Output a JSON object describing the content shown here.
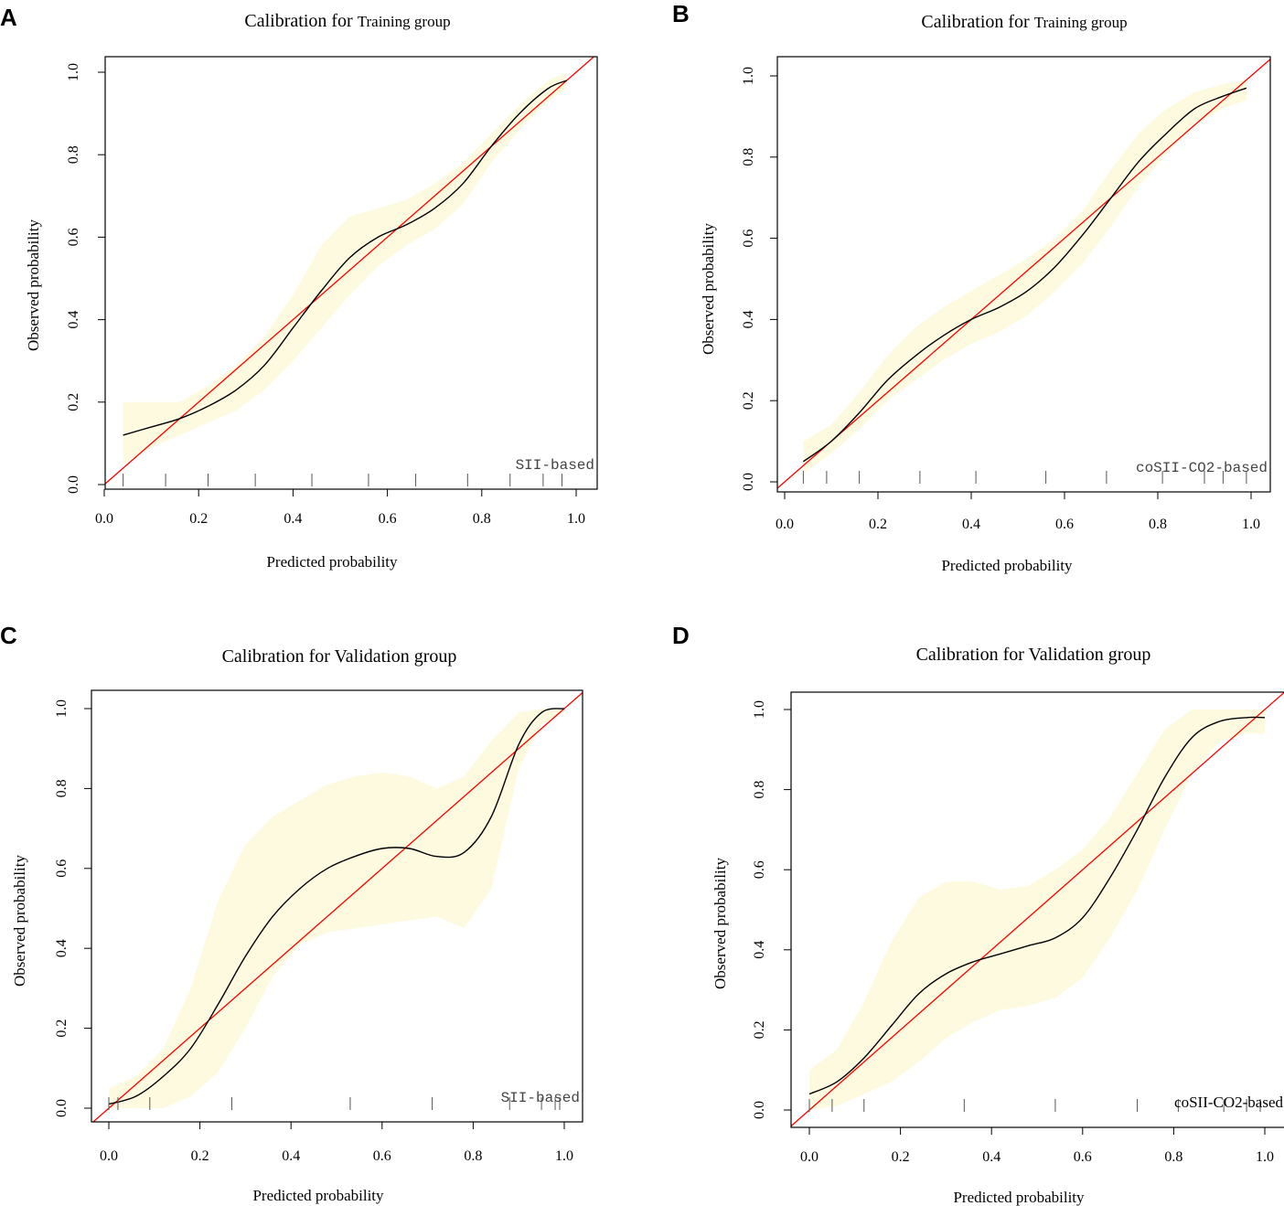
{
  "figure": {
    "colors": {
      "band": "#fdfae0",
      "curve": "#000000",
      "ideal": "#ff0000",
      "frame": "#000000"
    }
  },
  "chart_data": [
    {
      "panel": "A",
      "type": "line",
      "title": "Calibration for",
      "title_group": "Training group",
      "xlabel": "Predicted probability",
      "ylabel": "Observed probability",
      "legend": "SII-based",
      "xlim": [
        0,
        1
      ],
      "ylim": [
        0,
        1
      ],
      "xticks": [
        "0.0",
        "0.2",
        "0.4",
        "0.6",
        "0.8",
        "1.0"
      ],
      "yticks": [
        "0.0",
        "0.2",
        "0.4",
        "0.6",
        "0.8",
        "1.0"
      ],
      "series": [
        {
          "name": "Calibration curve",
          "x": [
            0.04,
            0.1,
            0.16,
            0.22,
            0.28,
            0.34,
            0.4,
            0.46,
            0.52,
            0.58,
            0.64,
            0.7,
            0.76,
            0.82,
            0.88,
            0.94,
            0.98
          ],
          "y": [
            0.12,
            0.14,
            0.16,
            0.19,
            0.23,
            0.29,
            0.38,
            0.47,
            0.55,
            0.6,
            0.63,
            0.67,
            0.73,
            0.82,
            0.9,
            0.96,
            0.98
          ]
        },
        {
          "name": "Ideal",
          "x": [
            0,
            1
          ],
          "y": [
            0,
            1
          ]
        }
      ],
      "band": {
        "x": [
          0.04,
          0.1,
          0.16,
          0.22,
          0.28,
          0.34,
          0.4,
          0.46,
          0.52,
          0.58,
          0.64,
          0.7,
          0.76,
          0.82,
          0.88,
          0.94,
          0.98
        ],
        "lower": [
          0.05,
          0.09,
          0.12,
          0.15,
          0.18,
          0.23,
          0.3,
          0.38,
          0.46,
          0.53,
          0.58,
          0.62,
          0.68,
          0.78,
          0.86,
          0.93,
          0.96
        ],
        "upper": [
          0.2,
          0.2,
          0.2,
          0.24,
          0.29,
          0.36,
          0.46,
          0.58,
          0.65,
          0.67,
          0.69,
          0.73,
          0.78,
          0.85,
          0.92,
          0.98,
          1.0
        ]
      },
      "rug": [
        0.04,
        0.13,
        0.22,
        0.32,
        0.44,
        0.56,
        0.66,
        0.77,
        0.86,
        0.93,
        0.97
      ]
    },
    {
      "panel": "B",
      "type": "line",
      "title": "Calibration for",
      "title_group": "Training group",
      "xlabel": "Predicted probability",
      "ylabel": "Observed probability",
      "legend": "coSII-CO2-based",
      "xlim": [
        0,
        1
      ],
      "ylim": [
        0,
        1
      ],
      "xticks": [
        "0.0",
        "0.2",
        "0.4",
        "0.6",
        "0.8",
        "1.0"
      ],
      "yticks": [
        "0.0",
        "0.2",
        "0.4",
        "0.6",
        "0.8",
        "1.0"
      ],
      "series": [
        {
          "name": "Calibration curve",
          "x": [
            0.04,
            0.1,
            0.16,
            0.22,
            0.28,
            0.34,
            0.4,
            0.46,
            0.52,
            0.58,
            0.64,
            0.7,
            0.76,
            0.82,
            0.88,
            0.94,
            0.99
          ],
          "y": [
            0.05,
            0.1,
            0.17,
            0.25,
            0.31,
            0.36,
            0.4,
            0.43,
            0.47,
            0.53,
            0.61,
            0.7,
            0.79,
            0.86,
            0.92,
            0.95,
            0.97
          ]
        },
        {
          "name": "Ideal",
          "x": [
            0,
            1
          ],
          "y": [
            0,
            1
          ]
        }
      ],
      "band": {
        "x": [
          0.04,
          0.1,
          0.16,
          0.22,
          0.28,
          0.34,
          0.4,
          0.46,
          0.52,
          0.58,
          0.64,
          0.7,
          0.76,
          0.82,
          0.88,
          0.94,
          0.99
        ],
        "lower": [
          0.02,
          0.07,
          0.13,
          0.2,
          0.25,
          0.3,
          0.34,
          0.37,
          0.41,
          0.47,
          0.54,
          0.63,
          0.73,
          0.81,
          0.88,
          0.92,
          0.94
        ],
        "upper": [
          0.1,
          0.14,
          0.22,
          0.31,
          0.38,
          0.43,
          0.47,
          0.51,
          0.55,
          0.6,
          0.67,
          0.77,
          0.86,
          0.92,
          0.96,
          0.98,
          0.99
        ]
      },
      "rug": [
        0.04,
        0.09,
        0.16,
        0.29,
        0.41,
        0.56,
        0.69,
        0.81,
        0.9,
        0.94,
        0.99
      ]
    },
    {
      "panel": "C",
      "type": "line",
      "title": "Calibration for Validation group",
      "title_group": "",
      "xlabel": "Predicted probability",
      "ylabel": "Observed probability",
      "legend": "SII-based",
      "xlim": [
        0,
        1
      ],
      "ylim": [
        0,
        1
      ],
      "xticks": [
        "0.0",
        "0.2",
        "0.4",
        "0.6",
        "0.8",
        "1.0"
      ],
      "yticks": [
        "0.0",
        "0.2",
        "0.4",
        "0.6",
        "0.8",
        "1.0"
      ],
      "series": [
        {
          "name": "Calibration curve",
          "x": [
            0.0,
            0.06,
            0.12,
            0.18,
            0.24,
            0.3,
            0.36,
            0.42,
            0.48,
            0.54,
            0.6,
            0.66,
            0.72,
            0.78,
            0.84,
            0.9,
            0.95,
            1.0
          ],
          "y": [
            0.01,
            0.03,
            0.08,
            0.15,
            0.26,
            0.38,
            0.48,
            0.55,
            0.6,
            0.63,
            0.65,
            0.65,
            0.63,
            0.64,
            0.73,
            0.91,
            0.99,
            1.0
          ]
        },
        {
          "name": "Ideal",
          "x": [
            0,
            1
          ],
          "y": [
            0,
            1
          ]
        }
      ],
      "band": {
        "x": [
          0.0,
          0.06,
          0.12,
          0.18,
          0.24,
          0.3,
          0.36,
          0.42,
          0.48,
          0.54,
          0.6,
          0.66,
          0.72,
          0.78,
          0.84,
          0.9,
          0.95,
          1.0
        ],
        "lower": [
          0.0,
          0.0,
          0.0,
          0.03,
          0.09,
          0.2,
          0.33,
          0.41,
          0.44,
          0.45,
          0.46,
          0.47,
          0.48,
          0.45,
          0.55,
          0.85,
          0.96,
          0.99
        ],
        "upper": [
          0.05,
          0.08,
          0.15,
          0.3,
          0.52,
          0.66,
          0.73,
          0.77,
          0.81,
          0.83,
          0.84,
          0.83,
          0.8,
          0.83,
          0.92,
          0.99,
          1.0,
          1.0
        ]
      },
      "rug": [
        0.0,
        0.02,
        0.09,
        0.27,
        0.53,
        0.71,
        0.88,
        0.95,
        0.98,
        0.99
      ]
    },
    {
      "panel": "D",
      "type": "line",
      "title": "Calibration for Validation group",
      "title_group": "",
      "xlabel": "Predicted probability",
      "ylabel": "Observed probability",
      "legend": "coSII-CO2-based",
      "xlim": [
        0,
        1
      ],
      "ylim": [
        0,
        1
      ],
      "xticks": [
        "0.0",
        "0.2",
        "0.4",
        "0.6",
        "0.8",
        "1.0"
      ],
      "yticks": [
        "0.0",
        "0.2",
        "0.4",
        "0.6",
        "0.8",
        "1.0"
      ],
      "series": [
        {
          "name": "Calibration curve",
          "x": [
            0.0,
            0.06,
            0.12,
            0.18,
            0.24,
            0.3,
            0.36,
            0.42,
            0.48,
            0.54,
            0.6,
            0.66,
            0.72,
            0.78,
            0.84,
            0.9,
            0.96,
            1.0
          ],
          "y": [
            0.04,
            0.07,
            0.13,
            0.21,
            0.29,
            0.34,
            0.37,
            0.39,
            0.41,
            0.43,
            0.48,
            0.58,
            0.7,
            0.83,
            0.93,
            0.97,
            0.98,
            0.98
          ]
        },
        {
          "name": "Ideal",
          "x": [
            0,
            1
          ],
          "y": [
            0,
            1
          ]
        }
      ],
      "band": {
        "x": [
          0.0,
          0.06,
          0.12,
          0.18,
          0.24,
          0.3,
          0.36,
          0.42,
          0.48,
          0.54,
          0.6,
          0.66,
          0.72,
          0.78,
          0.84,
          0.9,
          0.96,
          1.0
        ],
        "lower": [
          0.0,
          0.01,
          0.04,
          0.07,
          0.12,
          0.18,
          0.22,
          0.25,
          0.26,
          0.28,
          0.33,
          0.43,
          0.55,
          0.7,
          0.84,
          0.92,
          0.94,
          0.94
        ],
        "upper": [
          0.1,
          0.15,
          0.27,
          0.42,
          0.53,
          0.57,
          0.57,
          0.55,
          0.56,
          0.6,
          0.65,
          0.73,
          0.84,
          0.95,
          1.0,
          1.0,
          1.0,
          1.0
        ]
      },
      "rug": [
        0.0,
        0.05,
        0.12,
        0.34,
        0.54,
        0.72,
        0.81,
        0.91,
        0.96,
        0.99
      ]
    }
  ]
}
